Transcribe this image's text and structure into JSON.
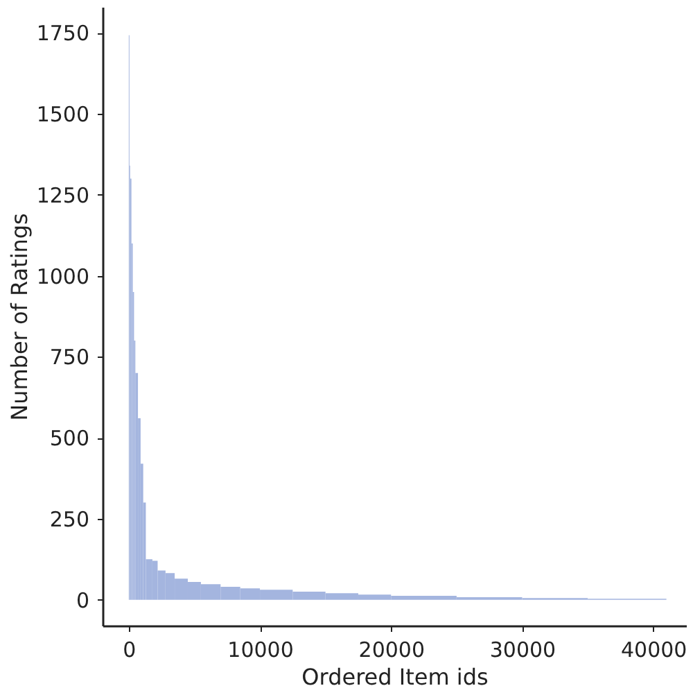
{
  "chart_data": {
    "type": "area",
    "xlabel": "Ordered Item ids",
    "ylabel": "Number of Ratings",
    "x": [
      0,
      50,
      100,
      200,
      300,
      400,
      500,
      700,
      900,
      1100,
      1300,
      1800,
      2200,
      2800,
      3500,
      4500,
      5500,
      7000,
      8500,
      10000,
      12500,
      15000,
      17500,
      20000,
      25000,
      30000,
      35000,
      41000
    ],
    "series": [
      {
        "color": "#a4b5df",
        "values": [
          1743,
          1340,
          1300,
          1100,
          950,
          800,
          700,
          560,
          420,
          300,
          125,
          120,
          90,
          82,
          65,
          55,
          48,
          40,
          35,
          31,
          25,
          20,
          16,
          12,
          8,
          5,
          3,
          1
        ]
      }
    ],
    "xlim": [
      -2000,
      42500
    ],
    "ylim": [
      -80,
      1830
    ],
    "xticks": [
      0,
      10000,
      20000,
      30000,
      40000
    ],
    "yticks": [
      0,
      250,
      500,
      750,
      1000,
      1250,
      1500,
      1750
    ],
    "grid": false
  }
}
